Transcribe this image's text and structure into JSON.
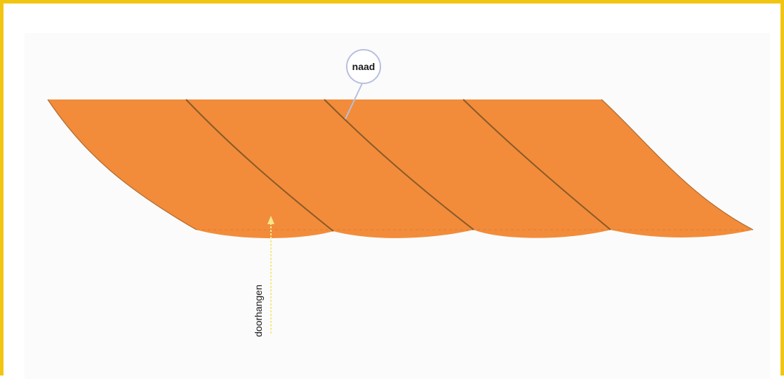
{
  "labels": {
    "seam": "naad",
    "sag": "doorhangen"
  },
  "colors": {
    "frame": "#f2c511",
    "panel_background": "#fbfbfb",
    "fabric": "#f28c3a",
    "seam_line": "#8a5a28",
    "callout_circle": "#b8bfe0",
    "sag_arrow": "#f5e88a"
  },
  "canopy": {
    "segments": 4
  }
}
